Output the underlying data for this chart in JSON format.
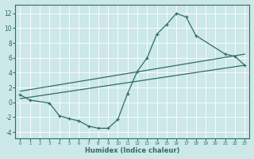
{
  "xlabel": "Humidex (Indice chaleur)",
  "ylabel": "",
  "bg_color": "#cce8e8",
  "grid_color": "#ffffff",
  "line_color": "#2d6e65",
  "xlim": [
    -0.5,
    23.5
  ],
  "ylim": [
    -4.8,
    13.2
  ],
  "xticks": [
    0,
    1,
    2,
    3,
    4,
    5,
    6,
    7,
    8,
    9,
    10,
    11,
    12,
    13,
    14,
    15,
    16,
    17,
    18,
    19,
    20,
    21,
    22,
    23
  ],
  "yticks": [
    -4,
    -2,
    0,
    2,
    4,
    6,
    8,
    10,
    12
  ],
  "curve1_x": [
    0,
    1,
    3,
    4,
    5,
    6,
    7,
    8,
    9,
    10,
    11,
    12,
    13,
    14,
    15,
    16,
    17,
    18,
    21,
    22,
    23
  ],
  "curve1_y": [
    1.0,
    0.3,
    -0.1,
    -1.8,
    -2.2,
    -2.5,
    -3.2,
    -3.5,
    -3.5,
    -2.3,
    1.2,
    4.2,
    6.0,
    9.2,
    10.5,
    12.0,
    11.5,
    9.0,
    6.5,
    6.2,
    5.0
  ],
  "line1_x": [
    0,
    23
  ],
  "line1_y": [
    1.5,
    6.5
  ],
  "line2_x": [
    0,
    23
  ],
  "line2_y": [
    0.5,
    5.0
  ],
  "marker": "+"
}
